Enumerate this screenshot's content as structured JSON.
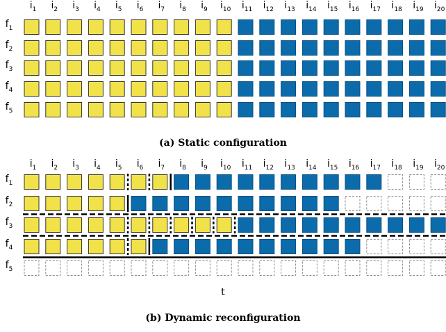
{
  "panels": [
    {
      "columns": [
        {
          "symbol": "i",
          "subscript": "1"
        },
        {
          "symbol": "i",
          "subscript": "2"
        },
        {
          "symbol": "i",
          "subscript": "3"
        },
        {
          "symbol": "i",
          "subscript": "4"
        },
        {
          "symbol": "i",
          "subscript": "5"
        },
        {
          "symbol": "i",
          "subscript": "6"
        },
        {
          "symbol": "i",
          "subscript": "7"
        },
        {
          "symbol": "i",
          "subscript": "8"
        },
        {
          "symbol": "i",
          "subscript": "9"
        },
        {
          "symbol": "i",
          "subscript": "10"
        },
        {
          "symbol": "i",
          "subscript": "11"
        },
        {
          "symbol": "i",
          "subscript": "12"
        },
        {
          "symbol": "i",
          "subscript": "13"
        },
        {
          "symbol": "i",
          "subscript": "14"
        },
        {
          "symbol": "i",
          "subscript": "15"
        },
        {
          "symbol": "i",
          "subscript": "16"
        },
        {
          "symbol": "i",
          "subscript": "17"
        },
        {
          "symbol": "i",
          "subscript": "18"
        },
        {
          "symbol": "i",
          "subscript": "19"
        },
        {
          "symbol": "i",
          "subscript": "20"
        }
      ],
      "rows": [
        {
          "symbol": "f",
          "subscript": "1"
        },
        {
          "symbol": "f",
          "subscript": "2"
        },
        {
          "symbol": "f",
          "subscript": "3"
        },
        {
          "symbol": "f",
          "subscript": "4"
        },
        {
          "symbol": "f",
          "subscript": "5"
        }
      ],
      "caption": "(a) Static configuration"
    },
    {
      "columns": [
        {
          "symbol": "i",
          "subscript": "1"
        },
        {
          "symbol": "i",
          "subscript": "2"
        },
        {
          "symbol": "i",
          "subscript": "3"
        },
        {
          "symbol": "i",
          "subscript": "4"
        },
        {
          "symbol": "i",
          "subscript": "5"
        },
        {
          "symbol": "i",
          "subscript": "6"
        },
        {
          "symbol": "i",
          "subscript": "7"
        },
        {
          "symbol": "i",
          "subscript": "8"
        },
        {
          "symbol": "i",
          "subscript": "9"
        },
        {
          "symbol": "i",
          "subscript": "10"
        },
        {
          "symbol": "i",
          "subscript": "11"
        },
        {
          "symbol": "i",
          "subscript": "12"
        },
        {
          "symbol": "i",
          "subscript": "13"
        },
        {
          "symbol": "i",
          "subscript": "14"
        },
        {
          "symbol": "i",
          "subscript": "15"
        },
        {
          "symbol": "i",
          "subscript": "16"
        },
        {
          "symbol": "i",
          "subscript": "17"
        },
        {
          "symbol": "i",
          "subscript": "18"
        },
        {
          "symbol": "i",
          "subscript": "19"
        },
        {
          "symbol": "i",
          "subscript": "20"
        }
      ],
      "rows": [
        {
          "symbol": "f",
          "subscript": "1"
        },
        {
          "symbol": "f",
          "subscript": "2"
        },
        {
          "symbol": "f",
          "subscript": "3"
        },
        {
          "symbol": "f",
          "subscript": "4"
        },
        {
          "symbol": "f",
          "subscript": "5"
        }
      ],
      "axis_label": "t",
      "caption": "(b) Dynamic reconfiguration"
    }
  ]
}
